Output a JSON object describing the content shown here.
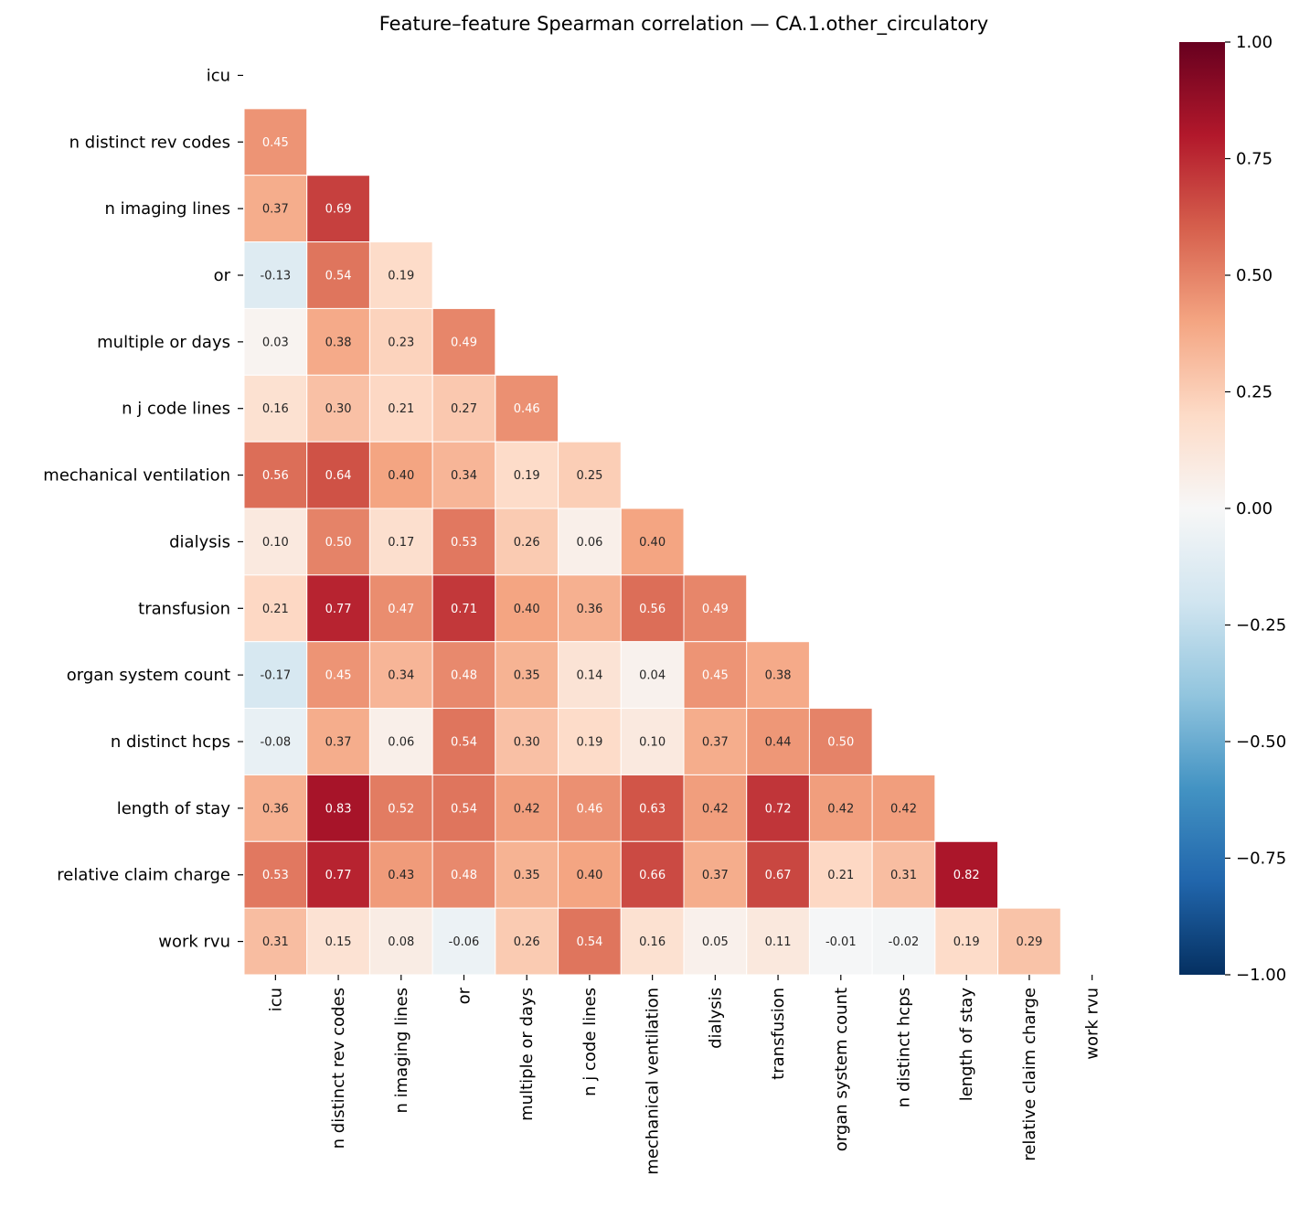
{
  "chart_data": {
    "type": "heatmap",
    "title": "Feature–feature Spearman correlation — CA.1.other_circulatory",
    "labels": [
      "icu",
      "n distinct rev codes",
      "n imaging lines",
      "or",
      "multiple or days",
      "n j code lines",
      "mechanical ventilation",
      "dialysis",
      "transfusion",
      "organ system count",
      "n distinct hcps",
      "length of stay",
      "relative claim charge",
      "work rvu"
    ],
    "mask": "upper triangle including diagonal",
    "lower_triangle": [
      [],
      [
        0.45
      ],
      [
        0.37,
        0.69
      ],
      [
        -0.13,
        0.54,
        0.19
      ],
      [
        0.03,
        0.38,
        0.23,
        0.49
      ],
      [
        0.16,
        0.3,
        0.21,
        0.27,
        0.46
      ],
      [
        0.56,
        0.64,
        0.4,
        0.34,
        0.19,
        0.25
      ],
      [
        0.1,
        0.5,
        0.17,
        0.53,
        0.26,
        0.06,
        0.4
      ],
      [
        0.21,
        0.77,
        0.47,
        0.71,
        0.4,
        0.36,
        0.56,
        0.49
      ],
      [
        -0.17,
        0.45,
        0.34,
        0.48,
        0.35,
        0.14,
        0.04,
        0.45,
        0.38
      ],
      [
        -0.08,
        0.37,
        0.06,
        0.54,
        0.3,
        0.19,
        0.1,
        0.37,
        0.44,
        0.5
      ],
      [
        0.36,
        0.83,
        0.52,
        0.54,
        0.42,
        0.46,
        0.63,
        0.42,
        0.72,
        0.42,
        0.42
      ],
      [
        0.53,
        0.77,
        0.43,
        0.48,
        0.35,
        0.4,
        0.66,
        0.37,
        0.67,
        0.21,
        0.31,
        0.82
      ],
      [
        0.31,
        0.15,
        0.08,
        -0.06,
        0.26,
        0.54,
        0.16,
        0.05,
        0.11,
        -0.01,
        -0.02,
        0.19,
        0.29
      ]
    ],
    "colormap": "RdBu_r",
    "colormap_stops": [
      "#053061",
      "#2166ac",
      "#4393c3",
      "#92c5de",
      "#d1e5f0",
      "#f7f7f7",
      "#fddbc7",
      "#f4a582",
      "#d6604d",
      "#b2182b",
      "#67001f"
    ],
    "vmin": -1,
    "vmax": 1,
    "colorbar_ticks": [
      "1.00",
      "0.75",
      "0.50",
      "0.25",
      "0.00",
      "−0.25",
      "−0.50",
      "−0.75",
      "−1.00"
    ],
    "colorbar_tick_values": [
      1,
      0.75,
      0.5,
      0.25,
      0,
      -0.25,
      -0.5,
      -0.75,
      -1
    ]
  }
}
